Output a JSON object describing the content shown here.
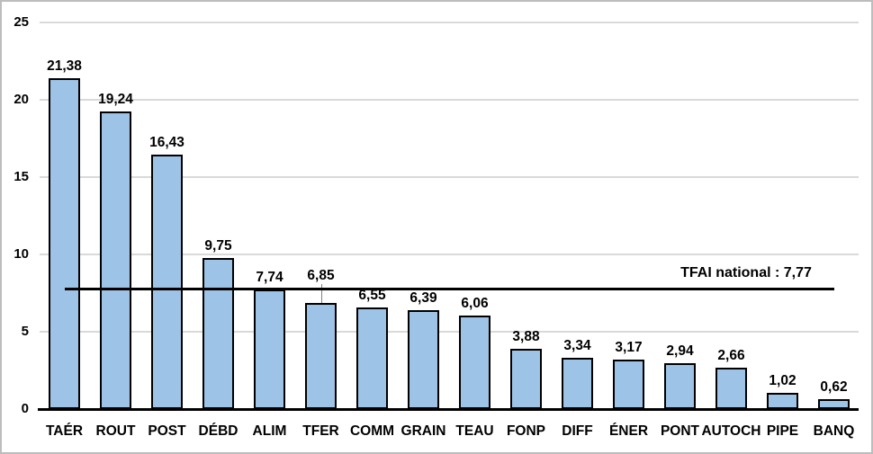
{
  "chart_data": {
    "type": "bar",
    "title": "",
    "xlabel": "",
    "ylabel": "",
    "categories": [
      "TAÉR",
      "ROUT",
      "POST",
      "DÉBD",
      "ALIM",
      "TFER",
      "COMM",
      "GRAIN",
      "TEAU",
      "FONP",
      "DIFF",
      "ÉNER",
      "PONT",
      "AUTOCH",
      "PIPE",
      "BANQ"
    ],
    "values": [
      21.38,
      19.24,
      16.43,
      9.75,
      7.74,
      6.85,
      6.55,
      6.39,
      6.06,
      3.88,
      3.34,
      3.17,
      2.94,
      2.66,
      1.02,
      0.62
    ],
    "value_labels": [
      "21,38",
      "19,24",
      "16,43",
      "9,75",
      "7,74",
      "6,85",
      "6,55",
      "6,39",
      "6,06",
      "3,88",
      "3,34",
      "3,17",
      "2,94",
      "2,66",
      "1,02",
      "0,62"
    ],
    "y_ticks": [
      0,
      5,
      10,
      15,
      20,
      25
    ],
    "y_tick_labels": [
      "0",
      "5",
      "10",
      "15",
      "20",
      "25"
    ],
    "ylim": [
      0,
      25
    ],
    "grid": "horizontal",
    "legend": "none",
    "reference_line": {
      "value": 7.77,
      "label": "TFAI national : 7,77",
      "spans": "from first category center to last category center"
    },
    "displaced_label_category": "TFER",
    "colors": {
      "bar_fill": "#9DC3E6",
      "bar_border": "#000000",
      "gridline": "#D9D9D9",
      "axis_line": "#000000",
      "reference_line": "#000000",
      "text": "#000000",
      "background": "#FFFFFF",
      "frame_border": "#BDBDBD"
    }
  }
}
